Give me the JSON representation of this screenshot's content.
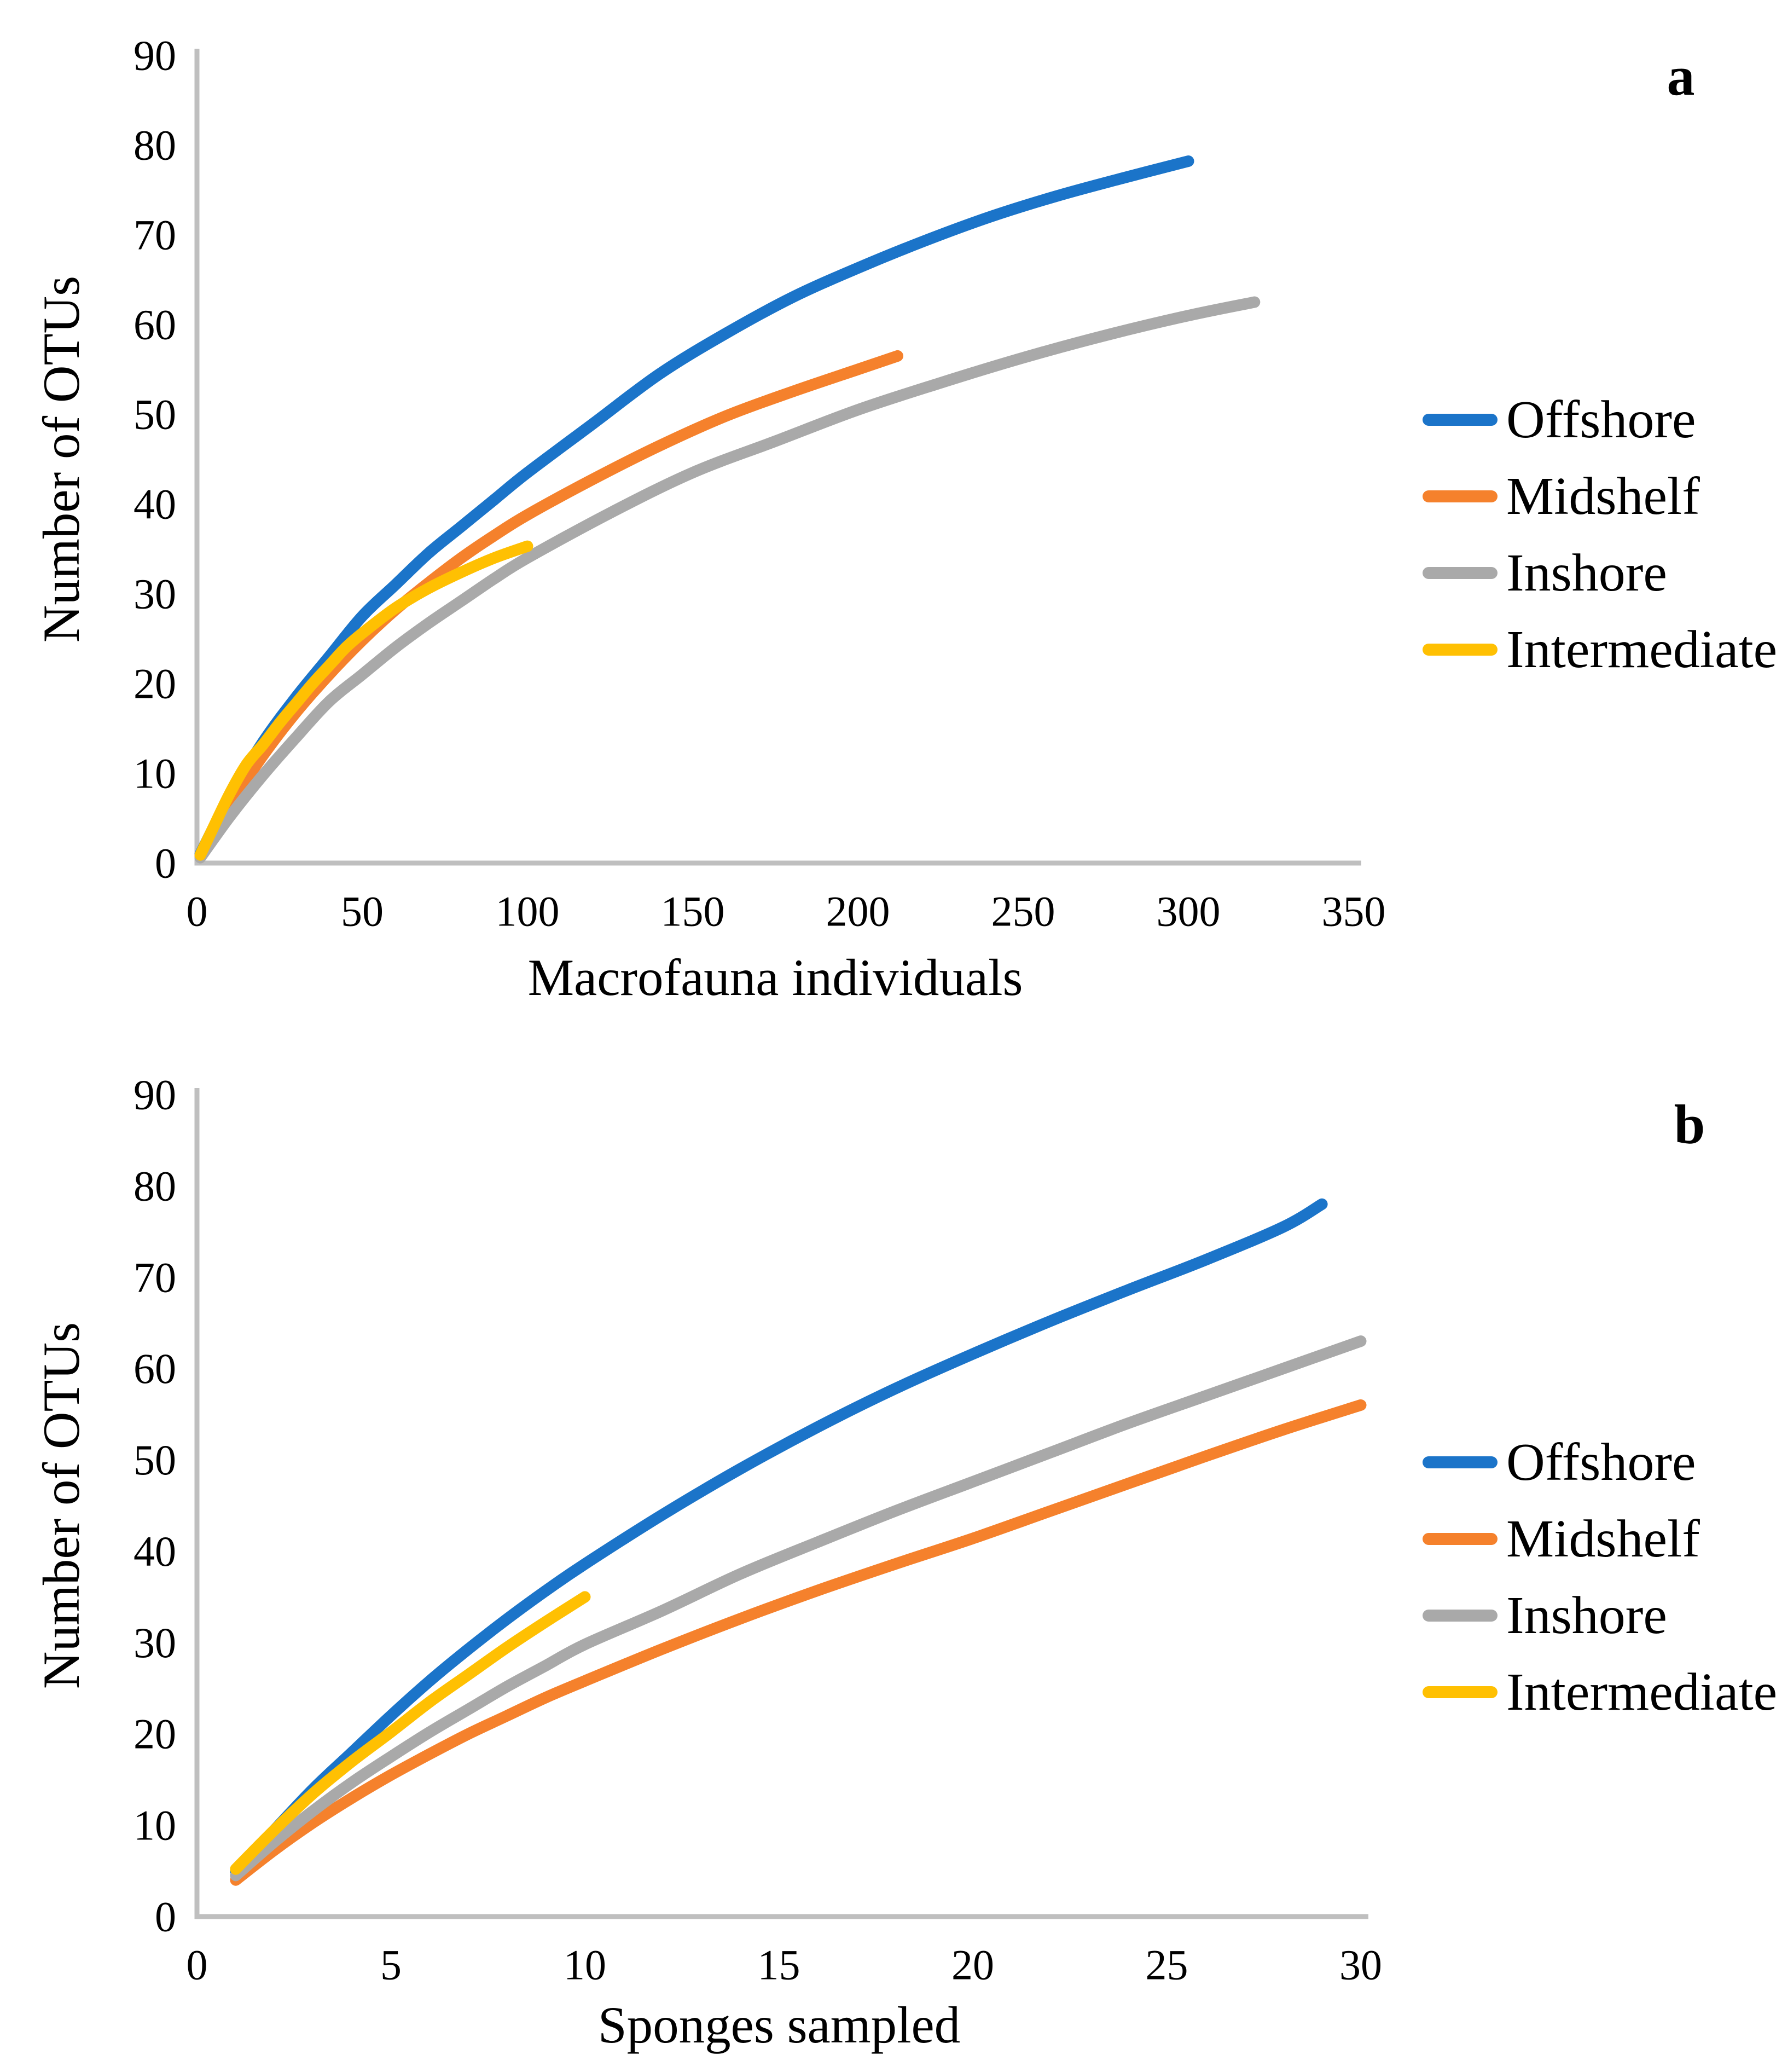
{
  "figure": {
    "background": "#ffffff",
    "axis_line_color": "#BFBFBF",
    "text_color": "#000000"
  },
  "chart_data": [
    {
      "type": "line",
      "panel_label": "a",
      "xlabel": "Macrofauna individuals",
      "ylabel": "Number of OTUs",
      "xlim": [
        0,
        350
      ],
      "ylim": [
        0,
        90
      ],
      "x_ticks": [
        0,
        50,
        100,
        150,
        200,
        250,
        300,
        350
      ],
      "y_ticks": [
        0,
        10,
        20,
        30,
        40,
        50,
        60,
        70,
        80,
        90
      ],
      "grid": false,
      "legend_position": "right",
      "series": [
        {
          "name": "Offshore",
          "color": "#1B74C9",
          "x": [
            1,
            10,
            20,
            30,
            40,
            50,
            60,
            70,
            80,
            90,
            100,
            120,
            140,
            160,
            180,
            200,
            220,
            240,
            260,
            280,
            300
          ],
          "y": [
            1,
            7.5,
            13.5,
            18.5,
            23,
            27.5,
            31,
            34.5,
            37.5,
            40.5,
            43.5,
            49,
            54.5,
            59,
            63,
            66.3,
            69.3,
            72,
            74.3,
            76.3,
            78.2
          ]
        },
        {
          "name": "Midshelf",
          "color": "#F5812C",
          "x": [
            1,
            10,
            20,
            30,
            40,
            50,
            60,
            70,
            80,
            90,
            100,
            120,
            140,
            160,
            180,
            200,
            212
          ],
          "y": [
            0.8,
            6.5,
            12,
            16.8,
            21,
            24.8,
            28.2,
            31.2,
            34,
            36.5,
            38.8,
            42.8,
            46.5,
            49.8,
            52.5,
            55,
            56.5
          ]
        },
        {
          "name": "Inshore",
          "color": "#A9A9A9",
          "x": [
            1,
            10,
            20,
            30,
            40,
            50,
            60,
            70,
            80,
            90,
            100,
            125,
            150,
            175,
            200,
            225,
            250,
            275,
            300,
            320
          ],
          "y": [
            0.6,
            5.2,
            9.8,
            14,
            18,
            21,
            24,
            26.7,
            29.2,
            31.7,
            34,
            39,
            43.5,
            47,
            50.5,
            53.5,
            56.3,
            58.8,
            61,
            62.5
          ]
        },
        {
          "name": "Intermediate",
          "color": "#FFC002",
          "x": [
            1,
            5,
            10,
            15,
            20,
            25,
            30,
            35,
            40,
            45,
            50,
            60,
            70,
            80,
            90,
            100
          ],
          "y": [
            0.9,
            4,
            7.8,
            11,
            13.2,
            15.6,
            17.8,
            20,
            22,
            24,
            25.6,
            28.4,
            30.6,
            32.4,
            34,
            35.3
          ]
        }
      ]
    },
    {
      "type": "line",
      "panel_label": "b",
      "xlabel": "Sponges sampled",
      "ylabel": "Number of OTUs",
      "xlim": [
        0,
        30
      ],
      "ylim": [
        0,
        90
      ],
      "x_ticks": [
        0,
        5,
        10,
        15,
        20,
        25,
        30
      ],
      "y_ticks": [
        0,
        10,
        20,
        30,
        40,
        50,
        60,
        70,
        80,
        90
      ],
      "grid": false,
      "legend_position": "right",
      "series": [
        {
          "name": "Offshore",
          "color": "#1B74C9",
          "x": [
            1,
            2,
            3,
            4,
            5,
            6,
            7,
            8,
            9,
            10,
            12,
            14,
            16,
            18,
            20,
            22,
            24,
            26,
            28,
            29
          ],
          "y": [
            5,
            9.5,
            14,
            18,
            22,
            25.8,
            29.3,
            32.6,
            35.7,
            38.6,
            44,
            49,
            53.6,
            57.8,
            61.6,
            65.2,
            68.6,
            71.9,
            75.5,
            78
          ]
        },
        {
          "name": "Midshelf",
          "color": "#F5812C",
          "x": [
            1,
            2,
            3,
            4,
            5,
            6,
            7,
            8,
            9,
            10,
            12,
            14,
            16,
            18,
            20,
            22,
            24,
            26,
            28,
            30
          ],
          "y": [
            4,
            7.3,
            10.3,
            13,
            15.5,
            17.8,
            20,
            22,
            24,
            25.8,
            29.3,
            32.6,
            35.7,
            38.6,
            41.4,
            44.4,
            47.4,
            50.4,
            53.3,
            56
          ]
        },
        {
          "name": "Inshore",
          "color": "#A9A9A9",
          "x": [
            1,
            2,
            3,
            4,
            5,
            6,
            7,
            8,
            9,
            10,
            12,
            14,
            16,
            18,
            20,
            22,
            24,
            26,
            28,
            30
          ],
          "y": [
            4.5,
            8.2,
            11.6,
            14.7,
            17.5,
            20.2,
            22.7,
            25.2,
            27.5,
            29.8,
            33.5,
            37.5,
            41,
            44.4,
            47.6,
            50.8,
            54,
            57,
            60,
            63
          ]
        },
        {
          "name": "Intermediate",
          "color": "#FFC002",
          "x": [
            1,
            2,
            3,
            4,
            5,
            6,
            7,
            8,
            9,
            10
          ],
          "y": [
            5.2,
            9.5,
            13.5,
            17,
            20.2,
            23.5,
            26.5,
            29.5,
            32.3,
            35
          ]
        }
      ]
    }
  ]
}
